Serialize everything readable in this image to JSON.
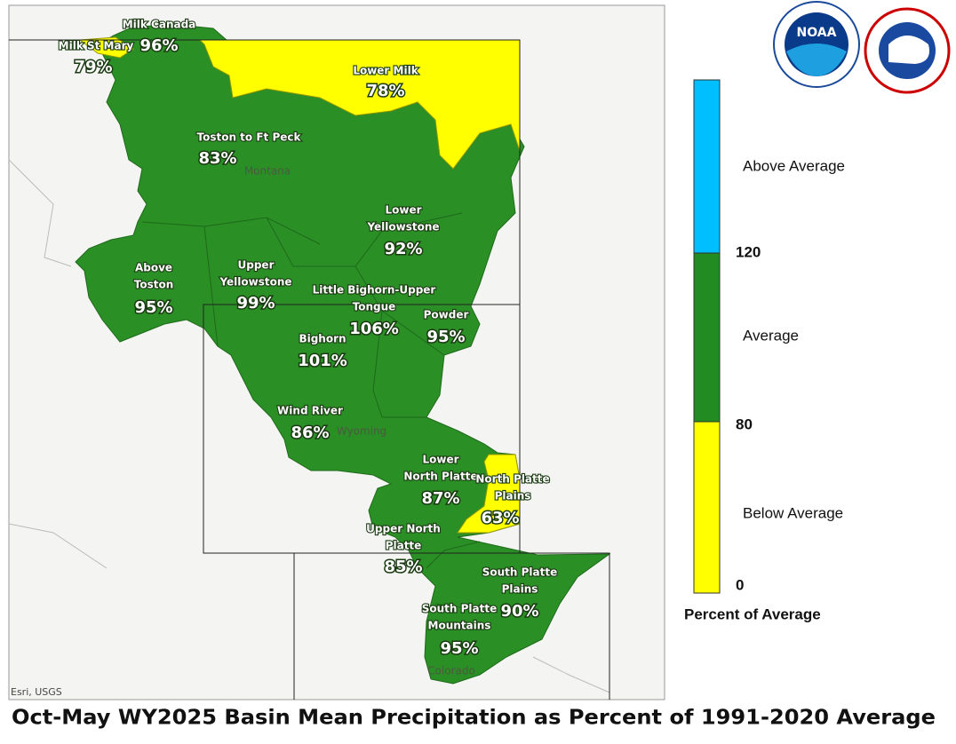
{
  "map": {
    "basins": [
      {
        "name": [
          "Milk Canada"
        ],
        "value": "96%"
      },
      {
        "name": [
          "Milk St Mary"
        ],
        "value": "79%"
      },
      {
        "name": [
          "Lower Milk"
        ],
        "value": "78%"
      },
      {
        "name": [
          "Toston to Ft Peck"
        ],
        "value": "83%"
      },
      {
        "name": [
          "Lower",
          "Yellowstone"
        ],
        "value": "92%"
      },
      {
        "name": [
          "Above",
          "Toston"
        ],
        "value": "95%"
      },
      {
        "name": [
          "Upper",
          "Yellowstone"
        ],
        "value": "99%"
      },
      {
        "name": [
          "Little Bighorn-Upper",
          "Tongue"
        ],
        "value": "106%"
      },
      {
        "name": [
          "Powder"
        ],
        "value": "95%"
      },
      {
        "name": [
          "Bighorn"
        ],
        "value": "101%"
      },
      {
        "name": [
          "Wind River"
        ],
        "value": "86%"
      },
      {
        "name": [
          "Lower",
          "North Platte"
        ],
        "value": "87%"
      },
      {
        "name": [
          "North Platte",
          "Plains"
        ],
        "value": "63%"
      },
      {
        "name": [
          "Upper North",
          "Platte"
        ],
        "value": "85%"
      },
      {
        "name": [
          "South Platte",
          "Plains"
        ],
        "value": "90%"
      },
      {
        "name": [
          "South Platte",
          "Mountains"
        ],
        "value": "95%"
      }
    ],
    "states": [
      "Montana",
      "Wyoming",
      "Colorado"
    ],
    "attribution": "Esri, USGS"
  },
  "logo": "NOAA",
  "legend": {
    "classes": [
      "Above Average",
      "Average",
      "Below Average"
    ],
    "breaks": [
      "120",
      "80",
      "0"
    ],
    "title": "Percent of Average"
  },
  "title": "Oct-May WY2025 Basin Mean Precipitation as Percent of 1991-2020 Average"
}
